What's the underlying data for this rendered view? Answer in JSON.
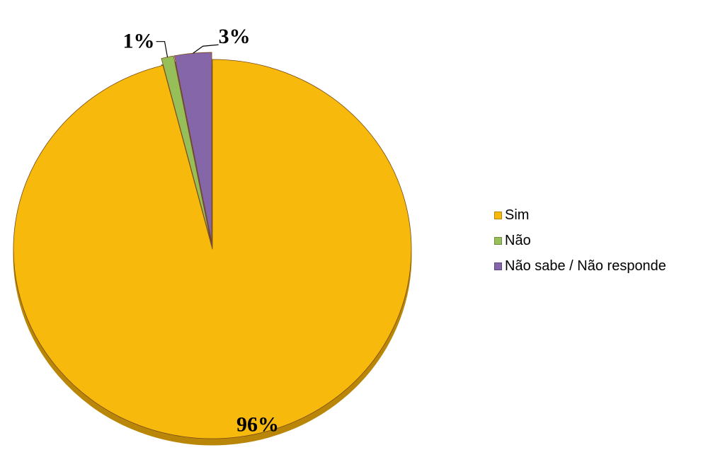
{
  "chart_data": {
    "type": "pie",
    "title": "",
    "categories": [
      "Sim",
      "Não",
      "Não sabe / Não responde"
    ],
    "values": [
      96,
      1,
      3
    ],
    "data_labels": [
      "96%",
      "1%",
      "3%"
    ],
    "colors": [
      "#F6B90C",
      "#97BF59",
      "#8466A9"
    ],
    "side_colors": [
      "#B98607",
      "#6E8E3B",
      "#5C4780"
    ],
    "exploded": [
      false,
      true,
      true
    ],
    "start_angle_deg": 0,
    "direction": "counterclockwise",
    "legend": {
      "position": "right",
      "entries": [
        "Sim",
        "Não",
        "Não sabe / Não responde"
      ]
    }
  }
}
